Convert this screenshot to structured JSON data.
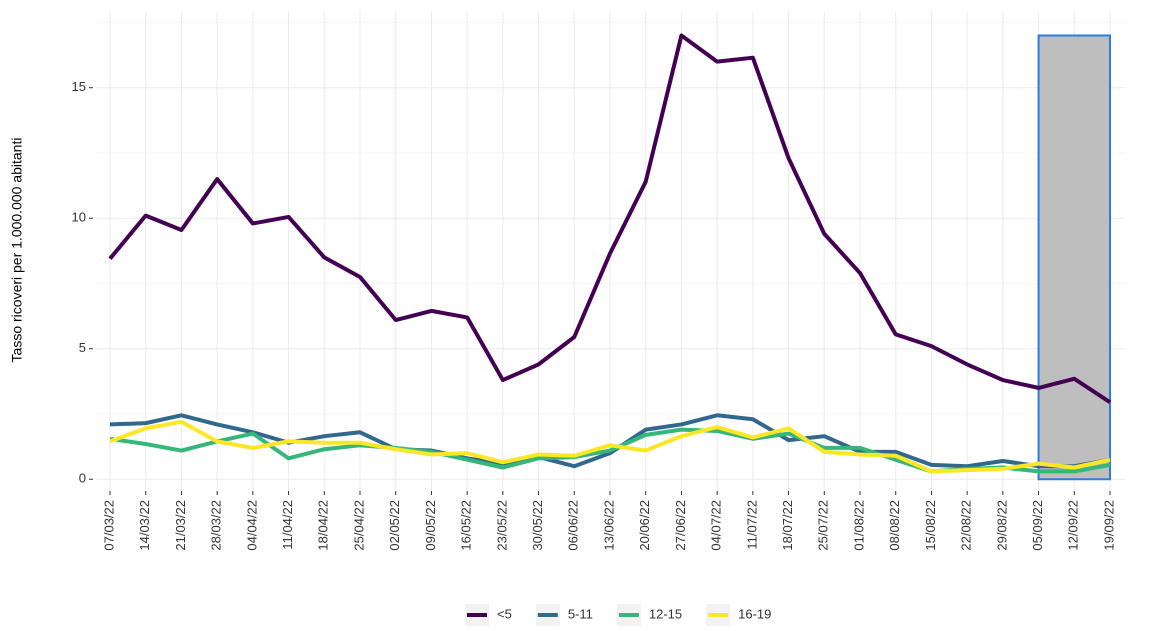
{
  "chart_data": {
    "type": "line",
    "y_label": "Tasso ricoveri per 1.000.000 abitanti",
    "categories": [
      "07/03/22",
      "14/03/22",
      "21/03/22",
      "28/03/22",
      "04/04/22",
      "11/04/22",
      "18/04/22",
      "25/04/22",
      "02/05/22",
      "09/05/22",
      "16/05/22",
      "23/05/22",
      "30/05/22",
      "06/06/22",
      "13/06/22",
      "20/06/22",
      "27/06/22",
      "04/07/22",
      "11/07/22",
      "18/07/22",
      "25/07/22",
      "01/08/22",
      "08/08/22",
      "15/08/22",
      "22/08/22",
      "29/08/22",
      "05/09/22",
      "12/09/22",
      "19/09/22"
    ],
    "series": [
      {
        "name": "<5",
        "color": "#440154",
        "values": [
          8.45,
          10.1,
          9.55,
          11.5,
          9.8,
          10.05,
          8.5,
          7.75,
          6.1,
          6.45,
          6.2,
          3.8,
          4.4,
          5.45,
          8.65,
          11.4,
          17.0,
          16.0,
          16.15,
          12.3,
          9.4,
          7.9,
          5.55,
          5.1,
          4.4,
          3.8,
          3.5,
          3.85,
          2.95
        ]
      },
      {
        "name": "5-11",
        "color": "#31688e",
        "values": [
          2.1,
          2.15,
          2.45,
          2.1,
          1.8,
          1.4,
          1.65,
          1.8,
          1.15,
          1.1,
          0.8,
          0.6,
          0.85,
          0.5,
          1.0,
          1.9,
          2.1,
          2.45,
          2.3,
          1.5,
          1.65,
          1.05,
          1.05,
          0.55,
          0.5,
          0.7,
          0.5,
          0.5,
          0.75
        ]
      },
      {
        "name": "12-15",
        "color": "#35b779",
        "values": [
          1.55,
          1.35,
          1.1,
          1.45,
          1.75,
          0.8,
          1.15,
          1.3,
          1.2,
          1.05,
          0.75,
          0.45,
          0.8,
          0.85,
          1.1,
          1.7,
          1.9,
          1.85,
          1.55,
          1.75,
          1.2,
          1.2,
          0.75,
          0.3,
          0.4,
          0.45,
          0.3,
          0.3,
          0.55
        ]
      },
      {
        "name": "16-19",
        "color": "#fde725",
        "values": [
          1.45,
          1.95,
          2.2,
          1.45,
          1.2,
          1.45,
          1.4,
          1.4,
          1.15,
          0.95,
          1.0,
          0.65,
          0.95,
          0.9,
          1.3,
          1.1,
          1.65,
          2.0,
          1.6,
          1.95,
          1.05,
          0.95,
          0.9,
          0.3,
          0.35,
          0.4,
          0.6,
          0.45,
          0.75
        ]
      }
    ],
    "ylim": [
      -0.45,
      17.9
    ],
    "yticks": [
      0,
      5,
      10,
      15
    ],
    "y_minor_grid": [
      2.5,
      7.5,
      12.5,
      17.5
    ],
    "grid": true,
    "highlight": {
      "from": "05/09/22",
      "to": "19/09/22",
      "ylim": [
        0,
        17
      ],
      "fill": "#bebebe",
      "stroke": "#2b7de0"
    },
    "legend": "bottom"
  }
}
